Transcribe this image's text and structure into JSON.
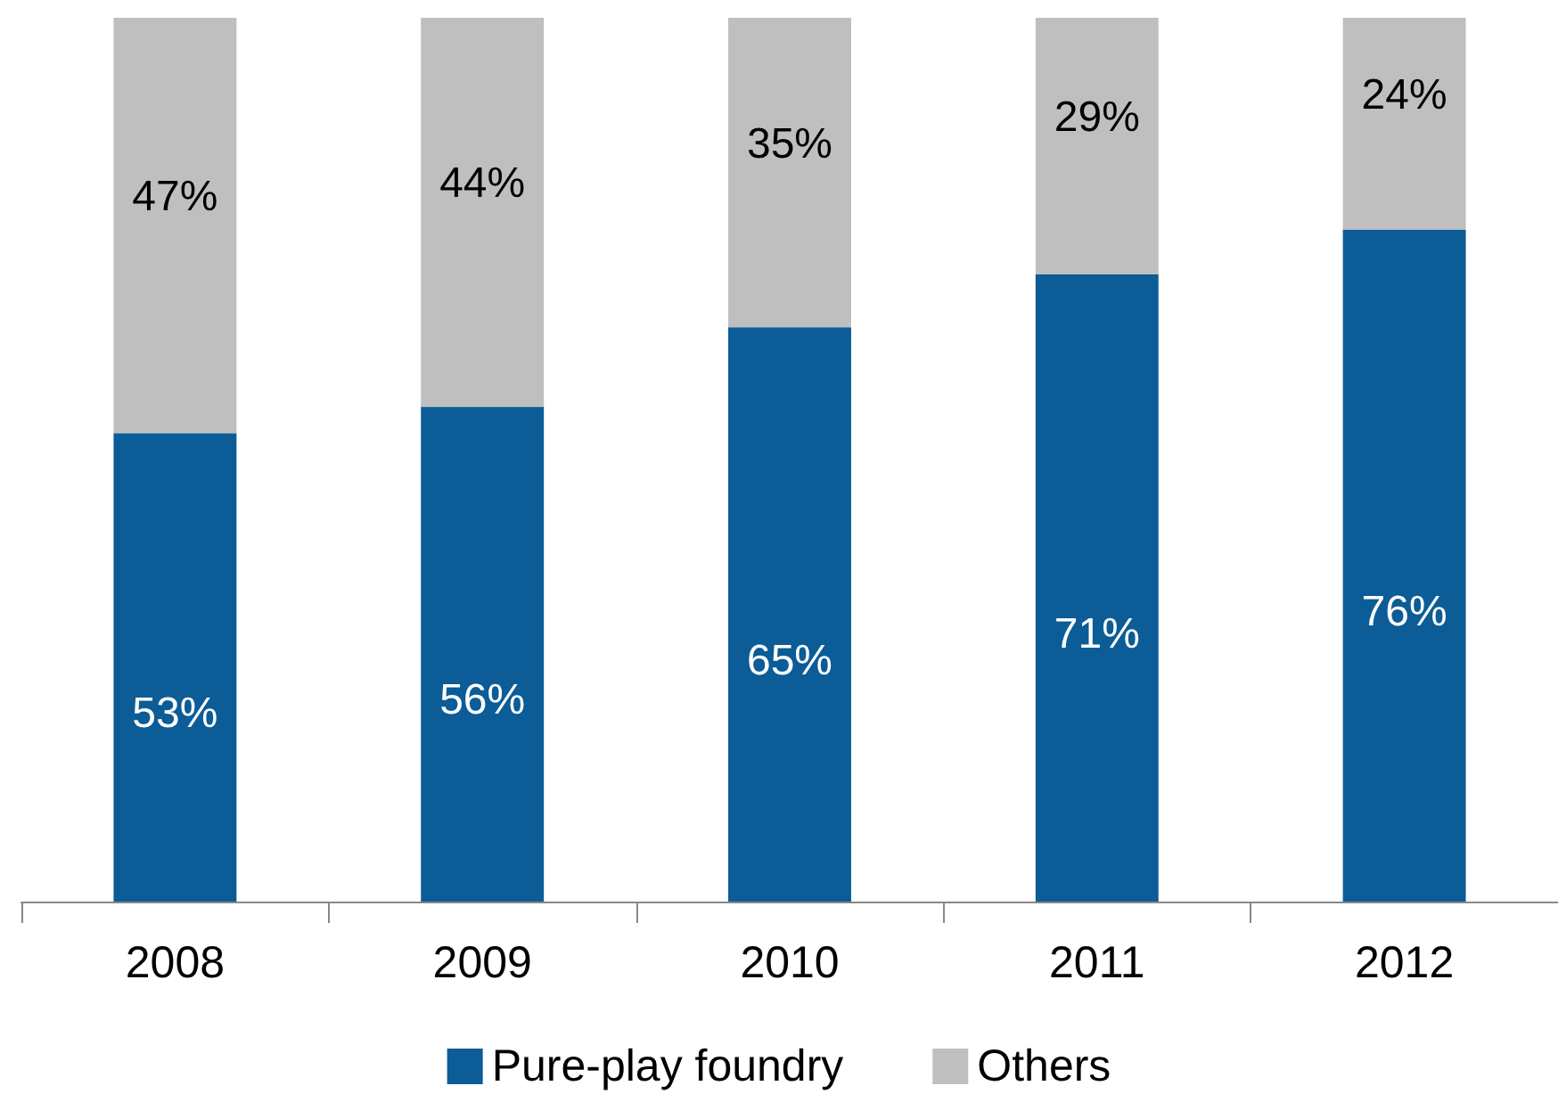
{
  "chart_data": {
    "type": "bar",
    "stacked": true,
    "categories": [
      "2008",
      "2009",
      "2010",
      "2011",
      "2012"
    ],
    "series": [
      {
        "name": "Pure-play foundry",
        "color": "#0b5c97",
        "values": [
          53,
          56,
          65,
          71,
          76
        ],
        "value_labels": [
          "53%",
          "56%",
          "65%",
          "71%",
          "76%"
        ]
      },
      {
        "name": "Others",
        "color": "#bfbfbf",
        "values": [
          47,
          44,
          35,
          29,
          24
        ],
        "value_labels": [
          "47%",
          "44%",
          "35%",
          "29%",
          "24%"
        ]
      }
    ],
    "ylim": [
      0,
      100
    ],
    "tick_labels": "x",
    "grid": false,
    "legend": "bottom"
  }
}
